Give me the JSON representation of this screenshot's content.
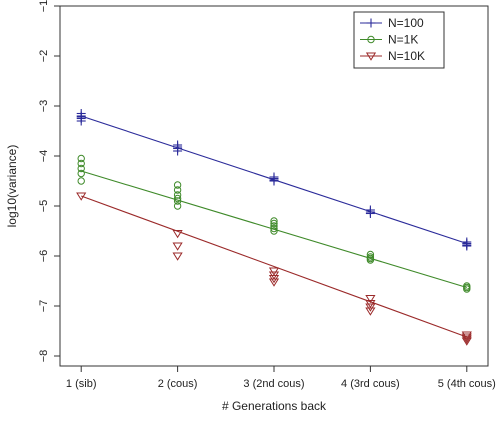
{
  "chart_data": {
    "type": "scatter",
    "title": "",
    "xlabel": "# Generations back",
    "ylabel": "log10(variance)",
    "x_ticks": [
      {
        "value": 1,
        "label": "1 (sib)"
      },
      {
        "value": 2,
        "label": "2 (cous)"
      },
      {
        "value": 3,
        "label": "3 (2nd cous)"
      },
      {
        "value": 4,
        "label": "4 (3rd cous)"
      },
      {
        "value": 5,
        "label": "5 (4th cous)"
      }
    ],
    "y_ticks": [
      {
        "value": -1,
        "label": "−1"
      },
      {
        "value": -2,
        "label": "−2"
      },
      {
        "value": -3,
        "label": "−3"
      },
      {
        "value": -4,
        "label": "−4"
      },
      {
        "value": -5,
        "label": "−5"
      },
      {
        "value": -6,
        "label": "−6"
      },
      {
        "value": -7,
        "label": "−7"
      },
      {
        "value": -8,
        "label": "−8"
      }
    ],
    "xlim": [
      0.78,
      5.22
    ],
    "ylim": [
      -8.2,
      -1
    ],
    "grid": false,
    "legend_position": "top-right",
    "series": [
      {
        "name": "N=100",
        "color": "#2b2b9a",
        "marker": "plus",
        "fit": [
          [
            1,
            -3.2
          ],
          [
            5,
            -5.75
          ]
        ],
        "points": [
          [
            1,
            -3.15
          ],
          [
            1,
            -3.2
          ],
          [
            1,
            -3.22
          ],
          [
            1,
            -3.25
          ],
          [
            1,
            -3.3
          ],
          [
            2,
            -3.78
          ],
          [
            2,
            -3.82
          ],
          [
            2,
            -3.85
          ],
          [
            2,
            -3.9
          ],
          [
            3,
            -4.42
          ],
          [
            3,
            -4.45
          ],
          [
            3,
            -4.48
          ],
          [
            3,
            -4.5
          ],
          [
            4,
            -5.08
          ],
          [
            4,
            -5.12
          ],
          [
            4,
            -5.15
          ],
          [
            5,
            -5.72
          ],
          [
            5,
            -5.75
          ],
          [
            5,
            -5.78
          ],
          [
            5,
            -5.8
          ]
        ]
      },
      {
        "name": "N=1K",
        "color": "#3f8a2a",
        "marker": "circle",
        "fit": [
          [
            1,
            -4.3
          ],
          [
            5,
            -6.63
          ]
        ],
        "points": [
          [
            1,
            -4.05
          ],
          [
            1,
            -4.15
          ],
          [
            1,
            -4.25
          ],
          [
            1,
            -4.35
          ],
          [
            1,
            -4.5
          ],
          [
            2,
            -4.58
          ],
          [
            2,
            -4.68
          ],
          [
            2,
            -4.78
          ],
          [
            2,
            -4.85
          ],
          [
            2,
            -4.9
          ],
          [
            2,
            -5.0
          ],
          [
            3,
            -5.3
          ],
          [
            3,
            -5.35
          ],
          [
            3,
            -5.4
          ],
          [
            3,
            -5.45
          ],
          [
            3,
            -5.5
          ],
          [
            4,
            -5.97
          ],
          [
            4,
            -6.02
          ],
          [
            4,
            -6.05
          ],
          [
            4,
            -6.08
          ],
          [
            5,
            -6.6
          ],
          [
            5,
            -6.63
          ],
          [
            5,
            -6.66
          ]
        ]
      },
      {
        "name": "N=10K",
        "color": "#9b2a2a",
        "marker": "triangle-down",
        "fit": [
          [
            1,
            -4.8
          ],
          [
            5,
            -7.62
          ]
        ],
        "points": [
          [
            1,
            -4.8
          ],
          [
            2,
            -5.55
          ],
          [
            2,
            -5.8
          ],
          [
            2,
            -6.0
          ],
          [
            3,
            -6.3
          ],
          [
            3,
            -6.38
          ],
          [
            3,
            -6.45
          ],
          [
            3,
            -6.52
          ],
          [
            4,
            -6.85
          ],
          [
            4,
            -6.95
          ],
          [
            4,
            -7.02
          ],
          [
            4,
            -7.1
          ],
          [
            5,
            -7.58
          ],
          [
            5,
            -7.62
          ],
          [
            5,
            -7.66
          ],
          [
            5,
            -7.7
          ]
        ]
      }
    ]
  }
}
